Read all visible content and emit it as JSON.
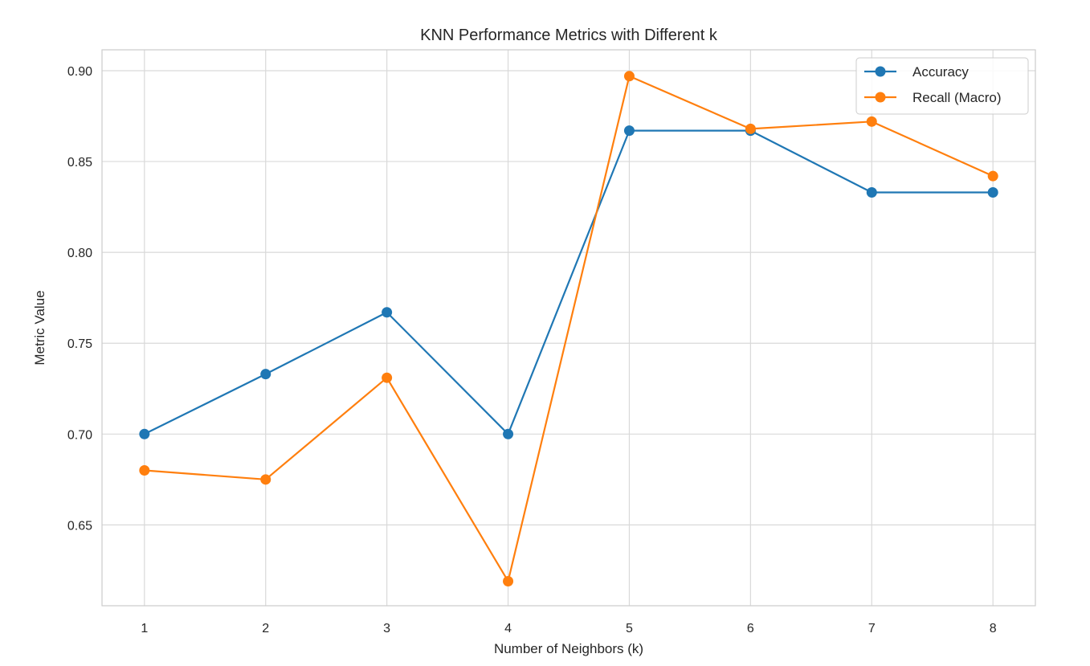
{
  "chart_data": {
    "type": "line",
    "title": "KNN Performance Metrics with Different k",
    "xlabel": "Number of Neighbors (k)",
    "ylabel": "Metric Value",
    "x": [
      1,
      2,
      3,
      4,
      5,
      6,
      7,
      8
    ],
    "x_tick_labels": [
      "1",
      "2",
      "3",
      "4",
      "5",
      "6",
      "7",
      "8"
    ],
    "y_ticks": [
      0.65,
      0.7,
      0.75,
      0.8,
      0.85,
      0.9
    ],
    "y_tick_labels": [
      "0.65",
      "0.70",
      "0.75",
      "0.80",
      "0.85",
      "0.90"
    ],
    "xlim": [
      0.65,
      8.35
    ],
    "ylim": [
      0.6055,
      0.9115
    ],
    "grid": true,
    "legend_position": "top-right",
    "marker": "circle",
    "series": [
      {
        "name": "Accuracy",
        "color": "#1f77b4",
        "values": [
          0.7,
          0.733,
          0.767,
          0.7,
          0.867,
          0.867,
          0.833,
          0.833
        ]
      },
      {
        "name": "Recall (Macro)",
        "color": "#ff7f0e",
        "values": [
          0.68,
          0.675,
          0.731,
          0.619,
          0.897,
          0.868,
          0.872,
          0.842
        ]
      }
    ]
  },
  "style": {
    "grid_color": "#d9d9d9",
    "frame_color": "#cccccc",
    "text_color": "#262626",
    "background": "#ffffff"
  }
}
